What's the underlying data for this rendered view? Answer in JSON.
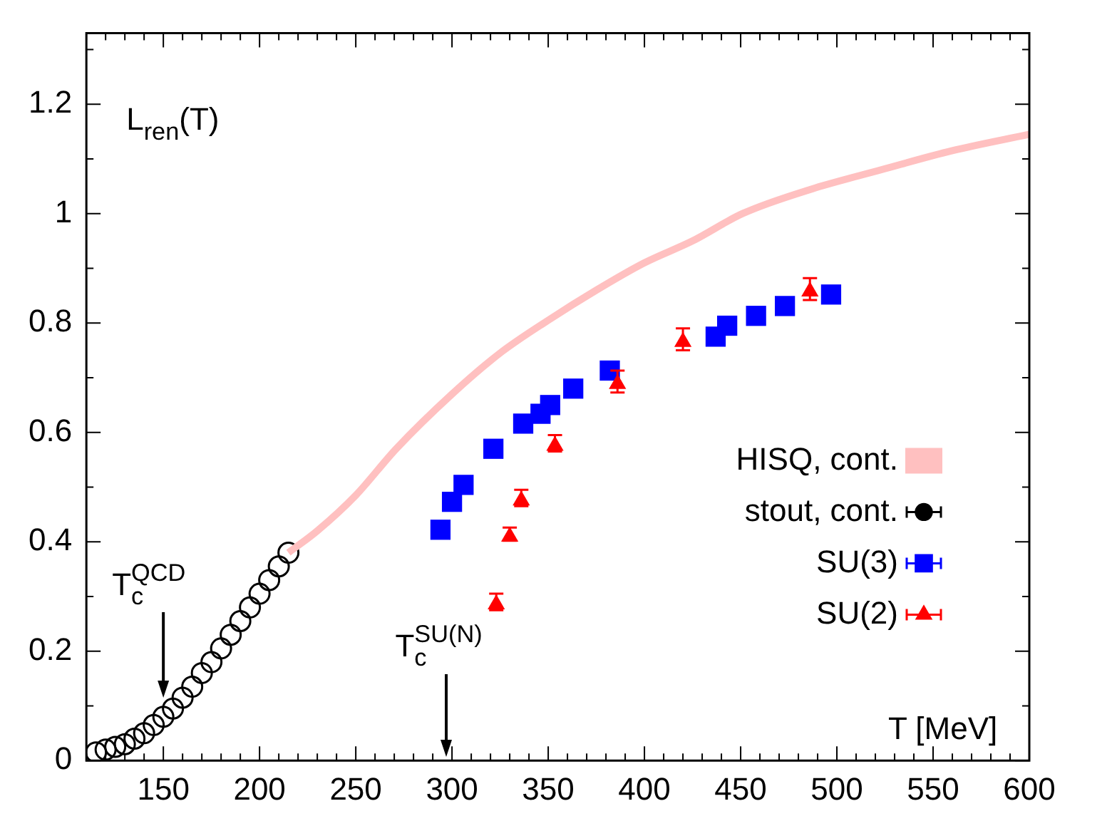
{
  "chart_data": {
    "type": "scatter",
    "xlabel": "T [MeV]",
    "ylabel": "L$_{ren}$(T)",
    "xlim": [
      110,
      600
    ],
    "ylim": [
      0,
      1.33
    ],
    "xticks": [
      150,
      200,
      250,
      300,
      350,
      400,
      450,
      500,
      550,
      600
    ],
    "yticks": [
      0,
      0.2,
      0.4,
      0.6,
      0.8,
      1,
      1.2
    ],
    "grid": false,
    "legend": "right",
    "annotations": [
      {
        "text": "T$_{c}$$^{QCD}$",
        "x": 150,
        "y": 0.115
      },
      "T$_{c}$$^{SU(N)}$"
    ],
    "series": [
      {
        "name": "HISQ, cont.",
        "type": "line",
        "color": "#ffc0c0",
        "marker": "none",
        "x": [
          215,
          230,
          250,
          271,
          300,
          325,
          350,
          375,
          400,
          425,
          451,
          487,
          523,
          560,
          600
        ],
        "values": [
          0.38,
          0.42,
          0.485,
          0.57,
          0.67,
          0.745,
          0.805,
          0.86,
          0.91,
          0.95,
          1.0,
          1.045,
          1.08,
          1.115,
          1.145
        ]
      },
      {
        "name": "stout, cont.",
        "color": "#000000",
        "marker": "circle",
        "x": [
          115,
          120,
          125,
          130,
          135,
          140,
          145,
          150,
          155,
          160,
          165,
          170,
          175,
          180,
          185,
          190,
          195,
          200,
          205,
          210,
          215
        ],
        "values": [
          0.015,
          0.02,
          0.025,
          0.03,
          0.04,
          0.05,
          0.065,
          0.08,
          0.095,
          0.115,
          0.135,
          0.16,
          0.18,
          0.205,
          0.23,
          0.255,
          0.28,
          0.305,
          0.33,
          0.355,
          0.38
        ]
      },
      {
        "name": "SU(3)",
        "color": "#0000ff",
        "marker": "square",
        "x": [
          294,
          300,
          306,
          321.5,
          337,
          346,
          351,
          363,
          382,
          437,
          443,
          458,
          473,
          497
        ],
        "values": [
          0.422,
          0.473,
          0.504,
          0.57,
          0.616,
          0.634,
          0.65,
          0.68,
          0.713,
          0.775,
          0.795,
          0.813,
          0.831,
          0.852
        ]
      },
      {
        "name": "SU(2)",
        "color": "#ff0000",
        "marker": "triangle",
        "x": [
          323,
          330,
          336,
          353.5,
          386,
          420,
          486
        ],
        "values": [
          0.29,
          0.414,
          0.48,
          0.58,
          0.693,
          0.77,
          0.862
        ],
        "errors": [
          0.015,
          0.012,
          0.015,
          0.015,
          0.02,
          0.02,
          0.02
        ]
      }
    ]
  }
}
